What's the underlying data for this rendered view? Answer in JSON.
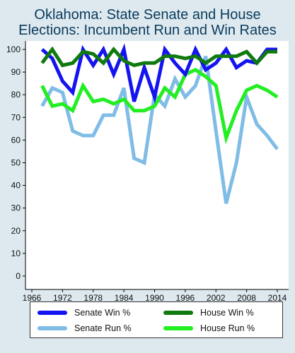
{
  "chart_data": {
    "type": "line",
    "title_lines": [
      "Oklahoma: State Senate and House",
      "Elections: Incumbent Run and Win Rates"
    ],
    "x": [
      1968,
      1970,
      1972,
      1974,
      1976,
      1978,
      1980,
      1982,
      1984,
      1986,
      1988,
      1990,
      1992,
      1994,
      1996,
      1998,
      2000,
      2002,
      2004,
      2006,
      2008,
      2010,
      2012,
      2014
    ],
    "xticks": [
      1966,
      1972,
      1978,
      1984,
      1990,
      1996,
      2002,
      2008,
      2014
    ],
    "yticks": [
      0,
      10,
      20,
      30,
      40,
      50,
      60,
      70,
      80,
      90,
      100
    ],
    "xlim": [
      1966,
      2014
    ],
    "ylim": [
      0,
      100
    ],
    "grid": false,
    "series": [
      {
        "name": "Senate Win %",
        "color": "#1414f0",
        "values": [
          100,
          96,
          86,
          81,
          100,
          93,
          100,
          89,
          100,
          77,
          92,
          79,
          100,
          94,
          89,
          100,
          91,
          94,
          100,
          92,
          95,
          94,
          100,
          100
        ]
      },
      {
        "name": "House Win %",
        "color": "#0f7a0f",
        "values": [
          94,
          100,
          93,
          94,
          99,
          98,
          94,
          100,
          95,
          93,
          94,
          94,
          97,
          97,
          96,
          97,
          94,
          97,
          97,
          97,
          99,
          94,
          99,
          99
        ]
      },
      {
        "name": "Senate Run %",
        "color": "#7fbce6",
        "values": [
          75,
          83,
          81,
          64,
          62,
          62,
          71,
          71,
          83,
          52,
          50,
          80,
          75,
          87,
          79,
          84,
          97,
          64,
          32,
          50,
          79,
          67,
          62,
          56
        ]
      },
      {
        "name": "House Run %",
        "color": "#22ee22",
        "values": [
          84,
          75,
          76,
          73,
          84,
          77,
          78,
          76,
          78,
          73,
          73,
          75,
          83,
          79,
          89,
          91,
          88,
          84,
          61,
          73,
          82,
          84,
          82,
          79
        ]
      }
    ],
    "legend": {
      "position": "bottom",
      "columns": 2
    }
  }
}
